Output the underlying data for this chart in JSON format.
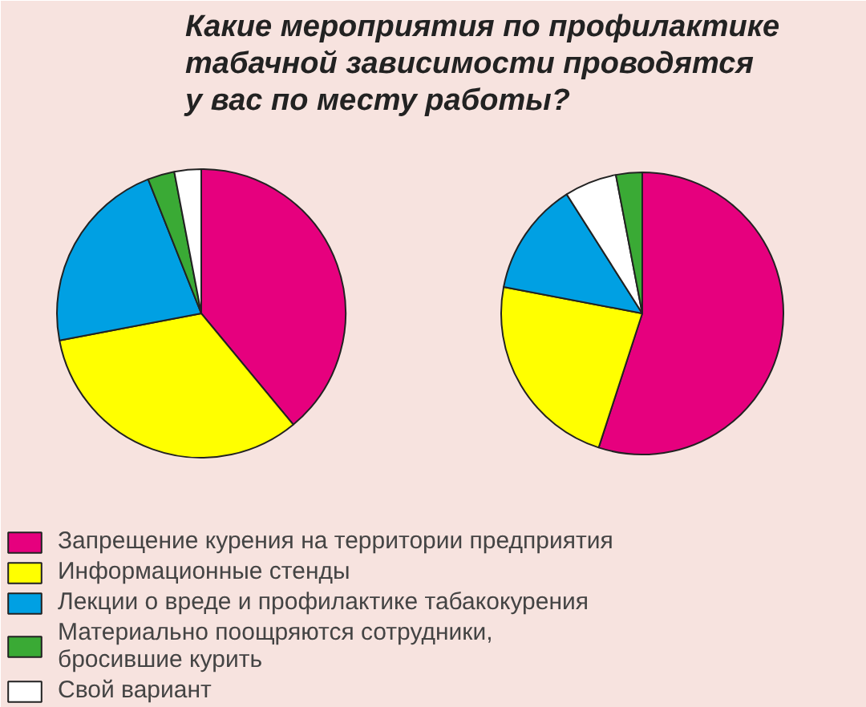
{
  "chart_data": [
    {
      "type": "pie",
      "title": "Какие мероприятия по профилактике табачной зависимости проводятся у вас по месту работы?",
      "categories": [
        "Запрещение курения на территории предприятия",
        "Информационные стенды",
        "Лекции о вреде и профилактике табакокурения",
        "Материально поощряются сотрудники, бросившие курить",
        "Свой вариант"
      ],
      "values": [
        39,
        33,
        22,
        3,
        3
      ],
      "colors": [
        "#e6007e",
        "#ffff00",
        "#00a0e3",
        "#3aaa35",
        "#ffffff"
      ],
      "legend": "bottom"
    },
    {
      "type": "pie",
      "categories": [
        null,
        null,
        null,
        null,
        null
      ],
      "values": [
        55,
        23,
        13,
        6,
        3
      ],
      "colors": [
        "#e6007e",
        "#ffff00",
        "#00a0e3",
        "#ffffff",
        "#3aaa35"
      ]
    }
  ]
}
